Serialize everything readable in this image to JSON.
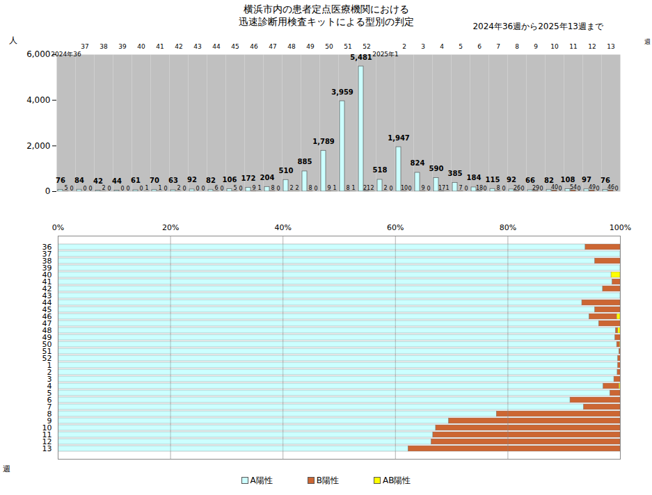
{
  "chart_data": [
    {
      "type": "bar",
      "title": "横浜市内の患者定点医療機関における\n迅速診断用検査キットによる型別の判定",
      "subtitle": "2024年36週から2025年13週まで",
      "x_label": "週",
      "y_label": "人",
      "categories": [
        "2024年36",
        "37",
        "38",
        "39",
        "40",
        "41",
        "42",
        "43",
        "44",
        "45",
        "46",
        "47",
        "48",
        "49",
        "50",
        "51",
        "52",
        "2025年1",
        "2",
        "3",
        "4",
        "5",
        "6",
        "7",
        "8",
        "9",
        "10",
        "11",
        "12",
        "13"
      ],
      "series": [
        {
          "name": "A陽性",
          "color": "#ccffff",
          "values": [
            76,
            84,
            42,
            44,
            61,
            70,
            63,
            92,
            82,
            106,
            172,
            204,
            510,
            885,
            1789,
            3959,
            5481,
            518,
            1947,
            824,
            590,
            385,
            184,
            115,
            92,
            66,
            82,
            108,
            97,
            76
          ],
          "value_labels": [
            "76",
            "84",
            "42",
            "44",
            "61",
            "70",
            "63",
            "92",
            "82",
            "106",
            "172",
            "204",
            "510",
            "885",
            "1,789",
            "3,959",
            "5,481",
            "518",
            "1,947",
            "824",
            "590",
            "385",
            "184",
            "115",
            "92",
            "66",
            "82",
            "108",
            "97",
            "76"
          ]
        },
        {
          "name": "B陽性",
          "color": "#cc6633",
          "values": [
            5,
            0,
            2,
            0,
            0,
            1,
            2,
            0,
            6,
            5,
            9,
            8,
            2,
            8,
            9,
            8,
            21,
            2,
            10,
            9,
            17,
            7,
            18,
            8,
            26,
            29,
            40,
            54,
            49,
            46
          ],
          "value_labels": [
            "5",
            "0",
            "2",
            "0",
            "0",
            "1",
            "2",
            "0",
            "6",
            "5",
            "9",
            "8",
            "2",
            "8",
            "9",
            "8",
            "21",
            "2",
            "10",
            "9",
            "17",
            "7",
            "18",
            "8",
            "26",
            "29",
            "40",
            "54",
            "49",
            "46"
          ]
        },
        {
          "name": "AB陽性",
          "color": "#ffff00",
          "values": [
            0,
            0,
            0,
            0,
            1,
            0,
            0,
            0,
            0,
            0,
            1,
            0,
            2,
            0,
            1,
            1,
            2,
            0,
            0,
            0,
            1,
            0,
            0,
            0,
            0,
            0,
            0,
            0,
            0,
            0
          ],
          "value_labels": [
            "0",
            "0",
            "0",
            "0",
            "1",
            "0",
            "0",
            "0",
            "0",
            "0",
            "1",
            "0",
            "2",
            "0",
            "1",
            "1",
            "2",
            "0",
            "0",
            "0",
            "1",
            "0",
            "0",
            "0",
            "0",
            "0",
            "0",
            "0",
            "0",
            "0"
          ]
        }
      ],
      "ylim": [
        0,
        6000
      ],
      "yticks": [
        0,
        {
          "value": 2000,
          "label": "2,000"
        },
        {
          "value": 4000,
          "label": "4,000"
        },
        {
          "value": 6000,
          "label": "6,000"
        }
      ],
      "grid": false,
      "data_labels": true
    },
    {
      "type": "bar",
      "orientation": "horizontal",
      "stacked": true,
      "y_label": "週",
      "categories": [
        "36",
        "37",
        "38",
        "39",
        "40",
        "41",
        "42",
        "43",
        "44",
        "45",
        "46",
        "47",
        "48",
        "49",
        "50",
        "51",
        "52",
        "1",
        "2",
        "3",
        "4",
        "5",
        "6",
        "7",
        "8",
        "9",
        "10",
        "11",
        "12",
        "13"
      ],
      "series": [
        {
          "name": "A陽性",
          "color": "#ccffff",
          "values": [
            93.8,
            100,
            95.5,
            100,
            98.4,
            98.6,
            96.9,
            100,
            93.2,
            95.5,
            94.5,
            96.2,
            99.2,
            99.1,
            99.4,
            99.8,
            99.6,
            99.6,
            99.5,
            98.9,
            97.0,
            98.2,
            91.1,
            93.5,
            78.0,
            69.5,
            67.2,
            66.7,
            66.4,
            62.3
          ]
        },
        {
          "name": "B陽性",
          "color": "#cc6633",
          "values": [
            6.2,
            0,
            4.5,
            0,
            0,
            1.4,
            3.1,
            0,
            6.8,
            4.5,
            4.9,
            3.8,
            0.4,
            0.9,
            0.5,
            0.2,
            0.4,
            0.4,
            0.5,
            1.1,
            2.8,
            1.8,
            8.9,
            6.5,
            22.0,
            30.5,
            32.8,
            33.3,
            33.6,
            37.7
          ]
        },
        {
          "name": "AB陽性",
          "color": "#ffff00",
          "values": [
            0,
            0,
            0,
            0,
            1.6,
            0,
            0,
            0,
            0,
            0,
            0.6,
            0,
            0.4,
            0,
            0.1,
            0,
            0,
            0,
            0,
            0,
            0.2,
            0,
            0,
            0,
            0,
            0,
            0,
            0,
            0,
            0
          ]
        }
      ],
      "xlim": [
        0,
        100
      ],
      "xticks": [
        {
          "value": 0,
          "label": "0%"
        },
        {
          "value": 20,
          "label": "20%"
        },
        {
          "value": 40,
          "label": "40%"
        },
        {
          "value": 60,
          "label": "60%"
        },
        {
          "value": 80,
          "label": "80%"
        },
        {
          "value": 100,
          "label": "100%"
        }
      ],
      "grid": true,
      "legend": "bottom"
    }
  ]
}
